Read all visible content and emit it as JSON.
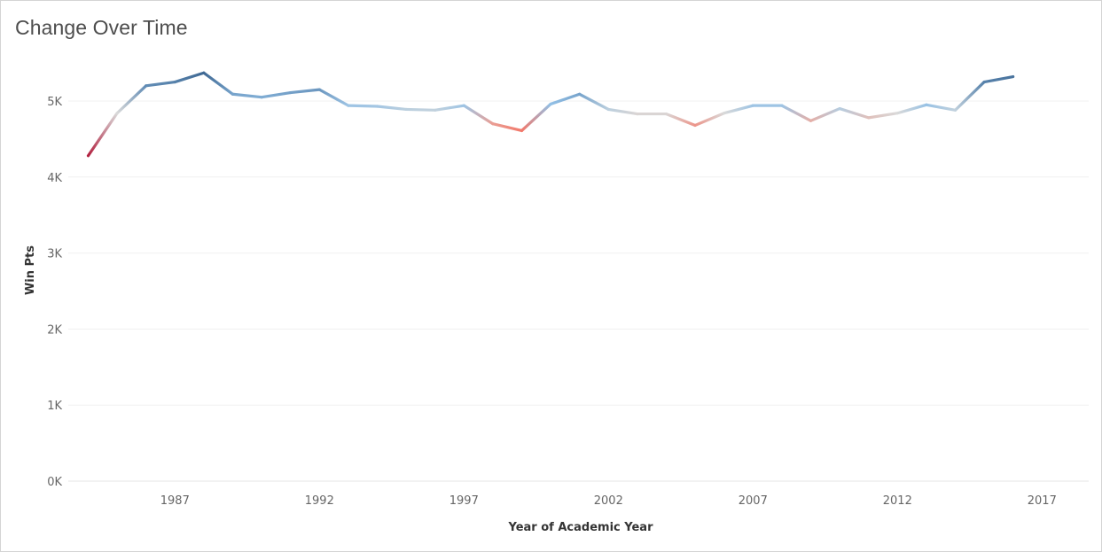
{
  "page": {
    "title": "Change Over Time"
  },
  "chart_data": {
    "type": "line",
    "title": "Change Over Time",
    "xlabel": "Year of Academic Year",
    "ylabel": "Win Pts",
    "xlim": [
      1984,
      2017
    ],
    "ylim": [
      0,
      5500
    ],
    "x_ticks": [
      1987,
      1992,
      1997,
      2002,
      2007,
      2012,
      2017
    ],
    "y_ticks": [
      {
        "value": 0,
        "label": "0K"
      },
      {
        "value": 1000,
        "label": "1K"
      },
      {
        "value": 2000,
        "label": "2K"
      },
      {
        "value": 3000,
        "label": "3K"
      },
      {
        "value": 4000,
        "label": "4K"
      },
      {
        "value": 5000,
        "label": "5K"
      }
    ],
    "grid": "horizontal",
    "color_encoding": "diverging red-blue by value (low = red, high = blue)",
    "colors": {
      "low": "#b2213f",
      "mid_low": "#f47c6c",
      "neutral": "#d9d9d9",
      "mid_high": "#92c0e6",
      "high": "#3f6893"
    },
    "series": [
      {
        "x": [
          1984,
          1985,
          1986,
          1987,
          1988,
          1989,
          1990,
          1991,
          1992,
          1993,
          1994,
          1995,
          1996,
          1997,
          1998,
          1999,
          2000,
          2001,
          2002,
          2003,
          2004,
          2005,
          2006,
          2007,
          2008,
          2009,
          2010,
          2011,
          2012,
          2013,
          2014,
          2015,
          2016
        ],
        "y": [
          4280,
          4840,
          5200,
          5250,
          5370,
          5090,
          5050,
          5110,
          5150,
          4940,
          4930,
          4890,
          4880,
          4940,
          4700,
          4610,
          4960,
          5090,
          4890,
          4830,
          4830,
          4680,
          4840,
          4940,
          4940,
          4740,
          4900,
          4780,
          4840,
          4950,
          4880,
          5250,
          5320
        ]
      }
    ]
  }
}
